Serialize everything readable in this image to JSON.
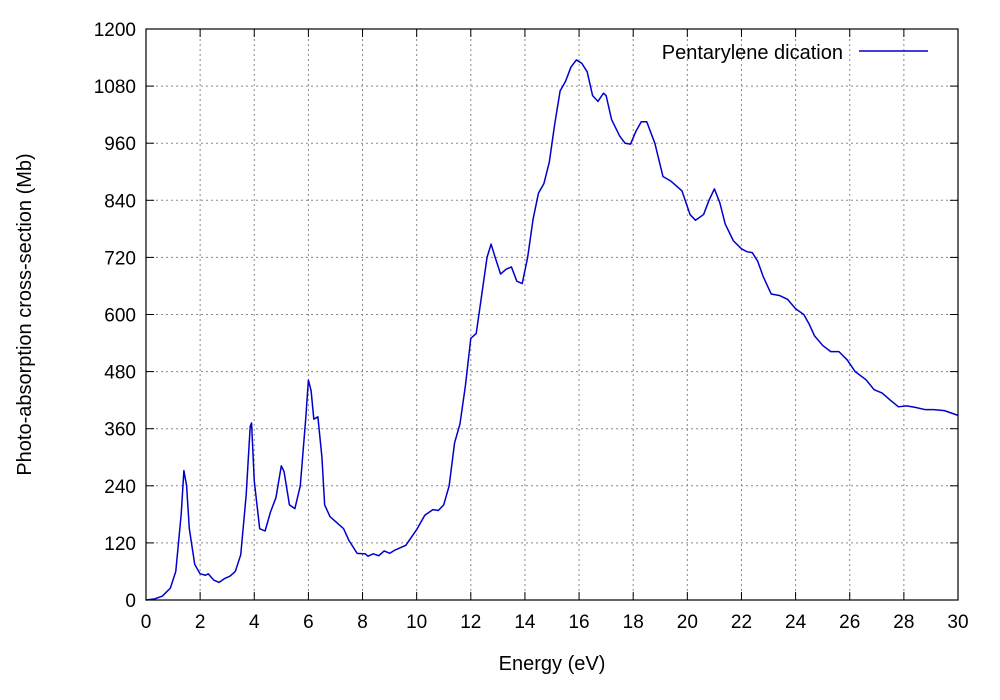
{
  "chart_data": {
    "type": "line",
    "xlabel": "Energy (eV)",
    "ylabel": "Photo-absorption cross-section (Mb)",
    "xlim": [
      0,
      30
    ],
    "ylim": [
      0,
      1200
    ],
    "x_ticks": [
      0,
      2,
      4,
      6,
      8,
      10,
      12,
      14,
      16,
      18,
      20,
      22,
      24,
      26,
      28,
      30
    ],
    "y_ticks": [
      0,
      120,
      240,
      360,
      480,
      600,
      720,
      840,
      960,
      1080,
      1200
    ],
    "grid": true,
    "legend_position": "top-right",
    "series": [
      {
        "name": "Pentarylene dication",
        "color": "#0000cc",
        "points": [
          [
            0.0,
            0
          ],
          [
            0.3,
            2
          ],
          [
            0.6,
            8
          ],
          [
            0.9,
            25
          ],
          [
            1.1,
            60
          ],
          [
            1.3,
            180
          ],
          [
            1.4,
            272
          ],
          [
            1.5,
            240
          ],
          [
            1.6,
            150
          ],
          [
            1.8,
            75
          ],
          [
            2.0,
            55
          ],
          [
            2.2,
            52
          ],
          [
            2.3,
            55
          ],
          [
            2.5,
            42
          ],
          [
            2.7,
            37
          ],
          [
            2.9,
            45
          ],
          [
            3.1,
            50
          ],
          [
            3.3,
            60
          ],
          [
            3.5,
            95
          ],
          [
            3.7,
            220
          ],
          [
            3.85,
            365
          ],
          [
            3.9,
            372
          ],
          [
            4.0,
            250
          ],
          [
            4.2,
            150
          ],
          [
            4.4,
            145
          ],
          [
            4.6,
            185
          ],
          [
            4.8,
            215
          ],
          [
            5.0,
            282
          ],
          [
            5.1,
            270
          ],
          [
            5.3,
            200
          ],
          [
            5.5,
            192
          ],
          [
            5.7,
            240
          ],
          [
            5.9,
            380
          ],
          [
            6.0,
            462
          ],
          [
            6.1,
            440
          ],
          [
            6.2,
            380
          ],
          [
            6.35,
            385
          ],
          [
            6.5,
            300
          ],
          [
            6.6,
            200
          ],
          [
            6.8,
            175
          ],
          [
            7.0,
            165
          ],
          [
            7.3,
            150
          ],
          [
            7.5,
            125
          ],
          [
            7.8,
            98
          ],
          [
            8.1,
            97
          ],
          [
            8.2,
            92
          ],
          [
            8.4,
            97
          ],
          [
            8.6,
            93
          ],
          [
            8.8,
            103
          ],
          [
            9.0,
            98
          ],
          [
            9.2,
            105
          ],
          [
            9.6,
            115
          ],
          [
            10.0,
            148
          ],
          [
            10.3,
            178
          ],
          [
            10.6,
            190
          ],
          [
            10.8,
            188
          ],
          [
            11.0,
            200
          ],
          [
            11.2,
            240
          ],
          [
            11.4,
            330
          ],
          [
            11.6,
            370
          ],
          [
            11.8,
            450
          ],
          [
            12.0,
            550
          ],
          [
            12.2,
            560
          ],
          [
            12.4,
            640
          ],
          [
            12.6,
            720
          ],
          [
            12.75,
            748
          ],
          [
            12.9,
            720
          ],
          [
            13.1,
            685
          ],
          [
            13.3,
            695
          ],
          [
            13.5,
            700
          ],
          [
            13.7,
            670
          ],
          [
            13.9,
            665
          ],
          [
            14.1,
            720
          ],
          [
            14.3,
            800
          ],
          [
            14.5,
            855
          ],
          [
            14.7,
            875
          ],
          [
            14.9,
            920
          ],
          [
            15.1,
            1000
          ],
          [
            15.3,
            1070
          ],
          [
            15.5,
            1090
          ],
          [
            15.7,
            1120
          ],
          [
            15.9,
            1135
          ],
          [
            16.1,
            1128
          ],
          [
            16.3,
            1110
          ],
          [
            16.5,
            1060
          ],
          [
            16.7,
            1048
          ],
          [
            16.9,
            1065
          ],
          [
            17.0,
            1060
          ],
          [
            17.2,
            1010
          ],
          [
            17.5,
            975
          ],
          [
            17.7,
            960
          ],
          [
            17.9,
            958
          ],
          [
            18.1,
            985
          ],
          [
            18.3,
            1005
          ],
          [
            18.5,
            1005
          ],
          [
            18.8,
            960
          ],
          [
            19.1,
            890
          ],
          [
            19.4,
            880
          ],
          [
            19.8,
            860
          ],
          [
            20.1,
            810
          ],
          [
            20.3,
            798
          ],
          [
            20.6,
            810
          ],
          [
            20.8,
            840
          ],
          [
            21.0,
            864
          ],
          [
            21.2,
            835
          ],
          [
            21.4,
            790
          ],
          [
            21.7,
            755
          ],
          [
            22.0,
            738
          ],
          [
            22.2,
            732
          ],
          [
            22.4,
            730
          ],
          [
            22.6,
            712
          ],
          [
            22.8,
            680
          ],
          [
            23.1,
            643
          ],
          [
            23.4,
            640
          ],
          [
            23.7,
            632
          ],
          [
            24.0,
            612
          ],
          [
            24.3,
            600
          ],
          [
            24.5,
            580
          ],
          [
            24.7,
            555
          ],
          [
            25.0,
            535
          ],
          [
            25.3,
            522
          ],
          [
            25.6,
            522
          ],
          [
            25.9,
            505
          ],
          [
            26.2,
            480
          ],
          [
            26.6,
            463
          ],
          [
            26.9,
            442
          ],
          [
            27.2,
            435
          ],
          [
            27.5,
            420
          ],
          [
            27.8,
            406
          ],
          [
            28.1,
            408
          ],
          [
            28.4,
            405
          ],
          [
            28.8,
            400
          ],
          [
            29.1,
            400
          ],
          [
            29.5,
            398
          ],
          [
            30.0,
            388
          ]
        ]
      }
    ]
  }
}
